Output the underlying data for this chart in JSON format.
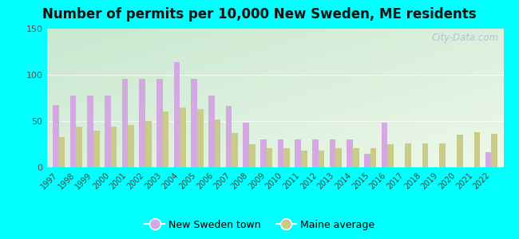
{
  "title": "Number of permits per 10,000 New Sweden, ME residents",
  "years": [
    1997,
    1998,
    1999,
    2000,
    2001,
    2002,
    2003,
    2004,
    2005,
    2006,
    2007,
    2008,
    2009,
    2010,
    2011,
    2012,
    2013,
    2014,
    2015,
    2016,
    2017,
    2018,
    2019,
    2020,
    2021,
    2022
  ],
  "town_values": [
    67,
    78,
    78,
    78,
    96,
    96,
    96,
    114,
    96,
    78,
    66,
    48,
    30,
    30,
    30,
    30,
    30,
    30,
    15,
    48,
    0,
    0,
    0,
    0,
    0,
    16
  ],
  "maine_values": [
    33,
    44,
    40,
    44,
    46,
    50,
    60,
    65,
    63,
    52,
    37,
    25,
    21,
    21,
    18,
    18,
    21,
    21,
    21,
    25,
    26,
    26,
    26,
    35,
    38,
    36
  ],
  "town_color": "#d4a8e0",
  "maine_color": "#c8cc88",
  "ylim": [
    0,
    150
  ],
  "yticks": [
    0,
    50,
    100,
    150
  ],
  "outer_bg": "#00ffff",
  "watermark": "City-Data.com",
  "legend_town": "New Sweden town",
  "legend_maine": "Maine average",
  "bar_width": 0.35,
  "title_fontsize": 12
}
